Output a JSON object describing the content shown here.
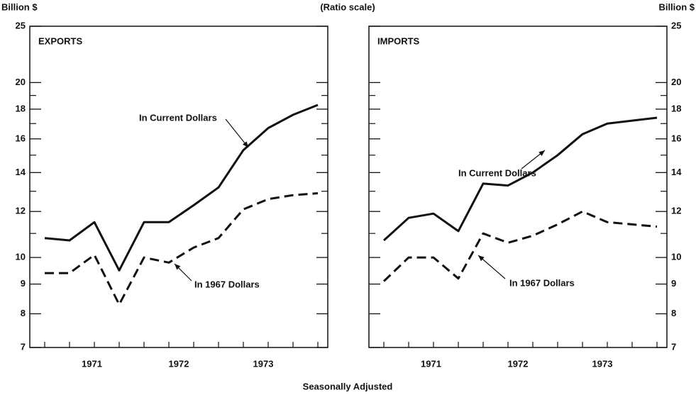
{
  "header": {
    "center": "(Ratio scale)"
  },
  "footer": "Seasonally Adjusted",
  "chart_data": [
    {
      "type": "line",
      "title": "EXPORTS",
      "y_label": "Billion $",
      "log_scale": true,
      "x": [
        0,
        1,
        2,
        3,
        4,
        5,
        6,
        7,
        8,
        9,
        10,
        11
      ],
      "xlim": [
        -0.6,
        11.4
      ],
      "xticks": [
        {
          "value": 1.9,
          "label": "1971"
        },
        {
          "value": 5.4,
          "label": "1972"
        },
        {
          "value": 8.8,
          "label": "1973"
        }
      ],
      "ylim": [
        7,
        25
      ],
      "yticks": [
        7,
        8,
        9,
        10,
        12,
        14,
        16,
        18,
        20,
        25
      ],
      "yticks_minor": [
        11,
        13,
        15,
        17,
        19
      ],
      "series": [
        {
          "name": "In Current Dollars",
          "color": "#111111",
          "style": "solid",
          "values": [
            10.8,
            10.7,
            11.5,
            9.5,
            11.5,
            11.5,
            12.3,
            13.2,
            15.3,
            16.7,
            17.6,
            18.3
          ]
        },
        {
          "name": "In 1967 Dollars",
          "color": "#111111",
          "style": "dashed",
          "values": [
            9.4,
            9.4,
            10.1,
            8.3,
            10.0,
            9.8,
            10.4,
            10.8,
            12.1,
            12.6,
            12.8,
            12.9
          ]
        }
      ]
    },
    {
      "type": "line",
      "title": "IMPORTS",
      "y_label": "Billion $",
      "log_scale": true,
      "x": [
        0,
        1,
        2,
        3,
        4,
        5,
        6,
        7,
        8,
        9,
        10,
        11
      ],
      "xlim": [
        -0.6,
        11.4
      ],
      "xticks": [
        {
          "value": 1.9,
          "label": "1971"
        },
        {
          "value": 5.4,
          "label": "1972"
        },
        {
          "value": 8.8,
          "label": "1973"
        }
      ],
      "ylim": [
        7,
        25
      ],
      "yticks": [
        7,
        8,
        9,
        10,
        12,
        14,
        16,
        18,
        20,
        25
      ],
      "yticks_minor": [
        11,
        13,
        15,
        17,
        19
      ],
      "series": [
        {
          "name": "In Current Dollars",
          "color": "#111111",
          "style": "solid",
          "values": [
            10.7,
            11.7,
            11.9,
            11.1,
            13.4,
            13.3,
            14.0,
            15.0,
            16.3,
            17.0,
            17.2,
            17.4
          ]
        },
        {
          "name": "In 1967 Dollars",
          "color": "#111111",
          "style": "dashed",
          "values": [
            9.1,
            10.0,
            10.0,
            9.2,
            11.0,
            10.6,
            10.9,
            11.4,
            12.0,
            11.5,
            11.4,
            11.3
          ]
        }
      ]
    }
  ]
}
